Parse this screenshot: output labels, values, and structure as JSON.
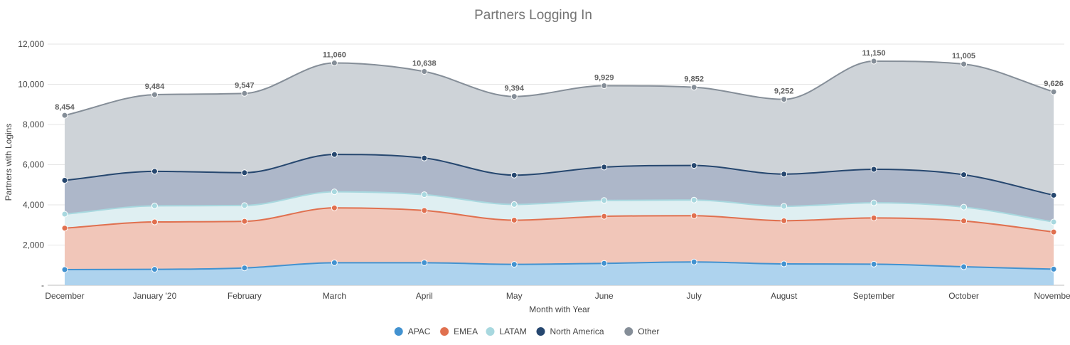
{
  "chart_data": {
    "type": "area",
    "stacked": true,
    "title": "Partners Logging In",
    "xlabel": "Month with Year",
    "ylabel": "Partners with Logins",
    "ylim": [
      0,
      12000
    ],
    "yticks": [
      0,
      2000,
      4000,
      6000,
      8000,
      10000,
      12000
    ],
    "ytick_labels": [
      "-",
      "2,000",
      "4,000",
      "6,000",
      "8,000",
      "10,000",
      "12,000"
    ],
    "grid": true,
    "legend_position": "bottom",
    "categories": [
      "December",
      "January '20",
      "February",
      "March",
      "April",
      "May",
      "June",
      "July",
      "August",
      "September",
      "October",
      "November"
    ],
    "series": [
      {
        "name": "APAC",
        "color": "#4292d0",
        "fill": "#aed3ee",
        "values": [
          780,
          790,
          860,
          1120,
          1120,
          1040,
          1090,
          1160,
          1060,
          1050,
          920,
          800
        ]
      },
      {
        "name": "EMEA",
        "color": "#e0704f",
        "fill": "#f1c6b9",
        "values": [
          2060,
          2360,
          2320,
          2730,
          2600,
          2200,
          2340,
          2300,
          2150,
          2300,
          2280,
          1850
        ]
      },
      {
        "name": "LATAM",
        "color": "#a8d8df",
        "fill": "#dfeff2",
        "values": [
          700,
          800,
          790,
          800,
          790,
          780,
          790,
          780,
          720,
          750,
          690,
          500
        ]
      },
      {
        "name": "North America",
        "color": "#26476f",
        "fill": "#adb7c9",
        "values": [
          1680,
          1720,
          1630,
          1860,
          1820,
          1460,
          1660,
          1720,
          1600,
          1670,
          1610,
          1330
        ]
      },
      {
        "name": "Other",
        "color": "#858e98",
        "fill": "#ced3d8",
        "values": [
          3234,
          3814,
          3947,
          4550,
          4308,
          3914,
          4049,
          3892,
          3722,
          5380,
          5505,
          5146
        ]
      }
    ],
    "totals": [
      8454,
      9484,
      9547,
      11060,
      10638,
      9394,
      9929,
      9852,
      9252,
      11150,
      11005,
      9626
    ],
    "total_labels": [
      "8,454",
      "9,484",
      "9,547",
      "11,060",
      "10,638",
      "9,394",
      "9,929",
      "9,852",
      "9,252",
      "11,150",
      "11,005",
      "9,626"
    ]
  }
}
